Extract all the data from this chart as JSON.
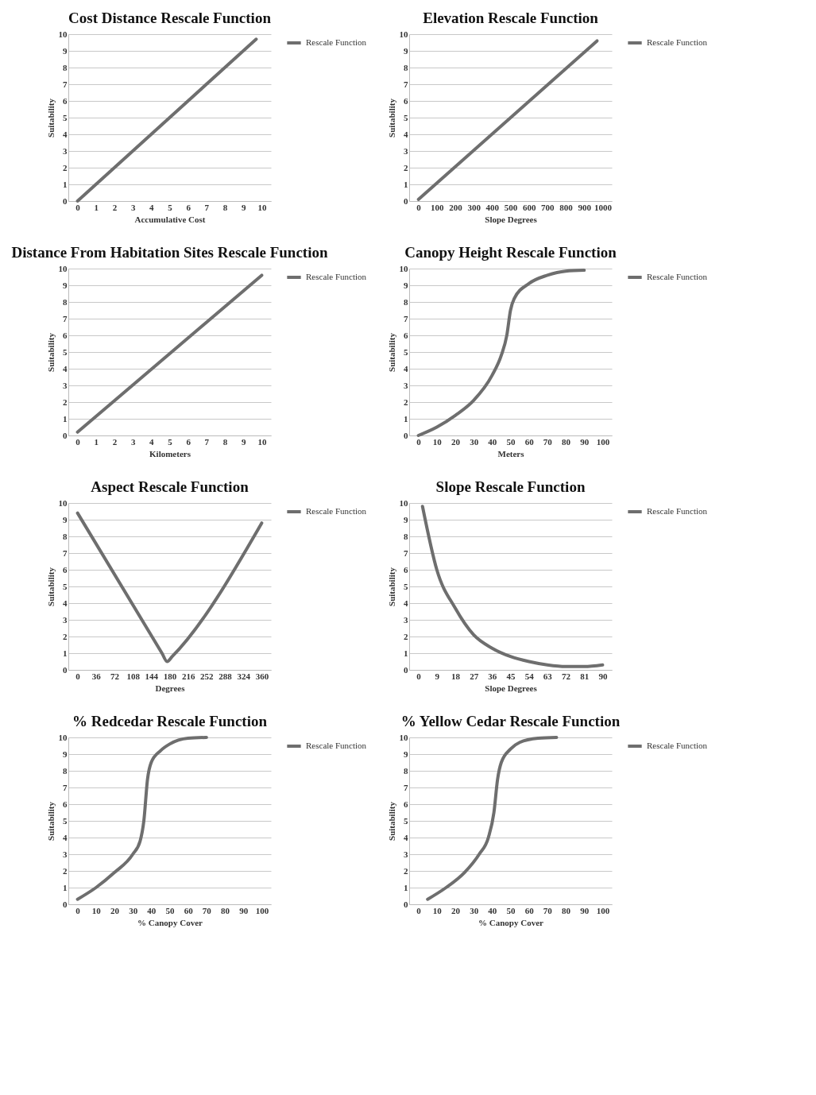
{
  "chart_data": [
    {
      "type": "line",
      "title": "Cost Distance Rescale Function",
      "xlabel": "Accumulative Cost",
      "ylabel": "Suitability",
      "xlim": [
        -0.5,
        10.5
      ],
      "xticks": [
        0,
        1,
        2,
        3,
        4,
        5,
        6,
        7,
        8,
        9,
        10
      ],
      "ylim": [
        0,
        10
      ],
      "yticks": [
        0,
        1,
        2,
        3,
        4,
        5,
        6,
        7,
        8,
        9,
        10
      ],
      "grid": "y",
      "legend": "right",
      "series": [
        {
          "name": "Rescale Function",
          "color": "#6e6e6e",
          "x": [
            0,
            9.7
          ],
          "values": [
            0,
            9.7
          ]
        }
      ]
    },
    {
      "type": "line",
      "title": "Elevation Rescale Function",
      "xlabel": "Slope Degrees",
      "ylabel": "Suitability",
      "xlim": [
        -50,
        1050
      ],
      "xticks": [
        0,
        100,
        200,
        300,
        400,
        500,
        600,
        700,
        800,
        900,
        1000
      ],
      "ylim": [
        0,
        10
      ],
      "yticks": [
        0,
        1,
        2,
        3,
        4,
        5,
        6,
        7,
        8,
        9,
        10
      ],
      "grid": "y",
      "legend": "right",
      "series": [
        {
          "name": "Rescale Function",
          "color": "#6e6e6e",
          "x": [
            0,
            970
          ],
          "values": [
            0.1,
            9.6
          ]
        }
      ]
    },
    {
      "type": "line",
      "title": "Distance From Habitation Sites Rescale Function",
      "xlabel": "Kilometers",
      "ylabel": "Suitability",
      "xlim": [
        -0.5,
        10.5
      ],
      "xticks": [
        0,
        1,
        2,
        3,
        4,
        5,
        6,
        7,
        8,
        9,
        10
      ],
      "ylim": [
        0,
        10
      ],
      "yticks": [
        0,
        1,
        2,
        3,
        4,
        5,
        6,
        7,
        8,
        9,
        10
      ],
      "grid": "y",
      "legend": "right",
      "series": [
        {
          "name": "Rescale Function",
          "color": "#6e6e6e",
          "x": [
            0,
            10
          ],
          "values": [
            0.2,
            9.6
          ]
        }
      ]
    },
    {
      "type": "line",
      "title": "Canopy Height Rescale Function",
      "xlabel": "Meters",
      "ylabel": "Suitability",
      "xlim": [
        -5,
        105
      ],
      "xticks": [
        0,
        10,
        20,
        30,
        40,
        50,
        60,
        70,
        80,
        90,
        100
      ],
      "ylim": [
        0,
        10
      ],
      "yticks": [
        0,
        1,
        2,
        3,
        4,
        5,
        6,
        7,
        8,
        9,
        10
      ],
      "grid": "y",
      "legend": "right",
      "series": [
        {
          "name": "Rescale Function",
          "color": "#6e6e6e",
          "x": [
            0,
            10,
            20,
            30,
            40,
            45,
            48,
            50,
            52,
            60,
            70,
            80,
            90
          ],
          "values": [
            0,
            0.5,
            1.2,
            2.1,
            3.6,
            4.8,
            6,
            7.5,
            8.2,
            9.1,
            9.6,
            9.85,
            9.9
          ]
        }
      ]
    },
    {
      "type": "line",
      "title": "Aspect Rescale Function",
      "xlabel": "Degrees",
      "ylabel": "Suitability",
      "xlim": [
        -18,
        378
      ],
      "xticks": [
        0,
        36,
        72,
        108,
        144,
        180,
        216,
        252,
        288,
        324,
        360
      ],
      "ylim": [
        0,
        10
      ],
      "yticks": [
        0,
        1,
        2,
        3,
        4,
        5,
        6,
        7,
        8,
        9,
        10
      ],
      "grid": "y",
      "legend": "right",
      "series": [
        {
          "name": "Rescale Function",
          "color": "#6e6e6e",
          "x": [
            0,
            165,
            175,
            185,
            360
          ],
          "values": [
            9.4,
            1,
            0.5,
            0.8,
            8.8
          ]
        }
      ]
    },
    {
      "type": "line",
      "title": "Slope Rescale Function",
      "xlabel": "Slope Degrees",
      "ylabel": "Suitability",
      "xlim": [
        -4.5,
        94.5
      ],
      "xticks": [
        0,
        9,
        18,
        27,
        36,
        45,
        54,
        63,
        72,
        81,
        90
      ],
      "ylim": [
        0,
        10
      ],
      "yticks": [
        0,
        1,
        2,
        3,
        4,
        5,
        6,
        7,
        8,
        9,
        10
      ],
      "grid": "y",
      "legend": "right",
      "series": [
        {
          "name": "Rescale Function",
          "color": "#6e6e6e",
          "x": [
            2,
            9,
            18,
            27,
            36,
            45,
            54,
            63,
            72,
            81,
            90
          ],
          "values": [
            9.8,
            6,
            3.7,
            2.1,
            1.3,
            0.8,
            0.5,
            0.3,
            0.2,
            0.2,
            0.3
          ]
        }
      ]
    },
    {
      "type": "line",
      "title": "% Redcedar Rescale Function",
      "xlabel": "% Canopy Cover",
      "ylabel": "Suitability",
      "xlim": [
        -5,
        105
      ],
      "xticks": [
        0,
        10,
        20,
        30,
        40,
        50,
        60,
        70,
        80,
        90,
        100
      ],
      "ylim": [
        0,
        10
      ],
      "yticks": [
        0,
        1,
        2,
        3,
        4,
        5,
        6,
        7,
        8,
        9,
        10
      ],
      "grid": "y",
      "legend": "right",
      "series": [
        {
          "name": "Rescale Function",
          "color": "#6e6e6e",
          "x": [
            0,
            10,
            20,
            30,
            34,
            36,
            38,
            40,
            45,
            50,
            60,
            70
          ],
          "values": [
            0.3,
            1,
            1.9,
            3,
            3.8,
            5,
            7.5,
            8.5,
            9.2,
            9.6,
            9.95,
            10
          ]
        }
      ]
    },
    {
      "type": "line",
      "title": "% Yellow Cedar Rescale Function",
      "xlabel": "% Canopy Cover",
      "ylabel": "Suitability",
      "xlim": [
        -5,
        105
      ],
      "xticks": [
        0,
        10,
        20,
        30,
        40,
        50,
        60,
        70,
        80,
        90,
        100
      ],
      "ylim": [
        0,
        10
      ],
      "yticks": [
        0,
        1,
        2,
        3,
        4,
        5,
        6,
        7,
        8,
        9,
        10
      ],
      "grid": "y",
      "legend": "right",
      "series": [
        {
          "name": "Rescale Function",
          "color": "#6e6e6e",
          "x": [
            5,
            15,
            25,
            33,
            38,
            41,
            43,
            45,
            50,
            55,
            65,
            75
          ],
          "values": [
            0.3,
            1,
            1.9,
            3,
            4,
            5.5,
            7.5,
            8.5,
            9.3,
            9.7,
            9.95,
            10
          ]
        }
      ]
    }
  ]
}
